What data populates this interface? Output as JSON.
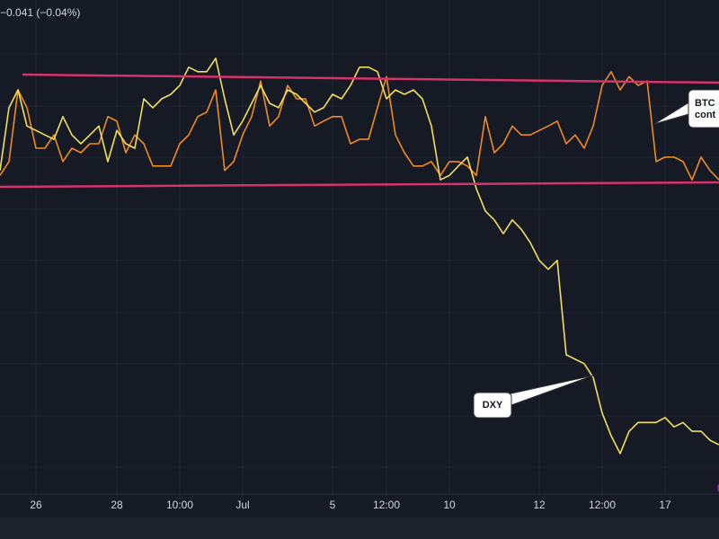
{
  "header": {
    "change": "−0.041 (−0.04%)"
  },
  "chart_data": {
    "type": "line",
    "categories": [
      null,
      null,
      null,
      null,
      "26",
      null,
      null,
      null,
      null,
      null,
      null,
      null,
      null,
      "28",
      null,
      null,
      null,
      null,
      null,
      null,
      "10:00",
      null,
      null,
      null,
      null,
      null,
      null,
      "Jul",
      null,
      null,
      null,
      null,
      null,
      null,
      null,
      null,
      null,
      "5",
      null,
      null,
      null,
      null,
      null,
      "12:00",
      null,
      null,
      null,
      null,
      null,
      null,
      "10",
      null,
      null,
      null,
      null,
      null,
      null,
      null,
      null,
      null,
      "12",
      null,
      null,
      null,
      null,
      null,
      null,
      "12:00",
      null,
      null,
      null,
      null,
      null,
      null,
      "17",
      null,
      null,
      null,
      null,
      null,
      null
    ],
    "series": [
      {
        "name": "BTC",
        "color": "#f08a24",
        "values": [
          64.5,
          67.3,
          81.8,
          78.2,
          70,
          70,
          72.7,
          67.3,
          70,
          69.1,
          70.9,
          70.9,
          76.4,
          75.5,
          69.1,
          72.7,
          70.9,
          66.4,
          66.4,
          66.4,
          70.9,
          72.7,
          76.4,
          77.3,
          81.8,
          65.5,
          67.3,
          72.7,
          76.4,
          83.6,
          74.5,
          76.4,
          82.7,
          80,
          80,
          74.5,
          75.5,
          76.4,
          76.4,
          70.9,
          71.8,
          71.8,
          78.2,
          84.5,
          72.7,
          69.1,
          66.4,
          66.4,
          67.3,
          64.5,
          67.3,
          67.3,
          66.4,
          64.5,
          76.4,
          69.1,
          70.9,
          74.5,
          72.7,
          72.7,
          73.6,
          74.5,
          75.5,
          70.9,
          72.7,
          70,
          74.5,
          82.7,
          85.5,
          81.8,
          84.5,
          82.7,
          83.6,
          67.3,
          68.2,
          68.2,
          67.3,
          63.6,
          68.2,
          65.5,
          63.6
        ]
      },
      {
        "name": "DXY",
        "color": "#f3df5a",
        "values": [
          65.5,
          78.2,
          81.8,
          74.5,
          73.6,
          72.7,
          71.8,
          76.4,
          72.7,
          70.9,
          72.7,
          74.5,
          67.3,
          73.6,
          70.9,
          70,
          80,
          78.2,
          80,
          80.9,
          82.7,
          86.4,
          85.5,
          85.5,
          88.2,
          80,
          72.7,
          75.5,
          79.1,
          82.7,
          79.1,
          78.2,
          81.8,
          80.9,
          79.1,
          77.3,
          78.2,
          80.9,
          80,
          82.7,
          86.4,
          86.4,
          85.5,
          80,
          81.8,
          80.9,
          81.8,
          80,
          74.5,
          63.6,
          64.5,
          66.4,
          68.2,
          61.8,
          57.3,
          55.5,
          52.7,
          55.5,
          53.6,
          50.9,
          47.3,
          45.5,
          47.3,
          28.2,
          27.3,
          26.4,
          23.6,
          16.4,
          11.8,
          8.2,
          12.7,
          14.5,
          14.5,
          14.5,
          15.5,
          13.6,
          14.5,
          12.7,
          12.7,
          10.9,
          10
        ]
      }
    ],
    "annotations": [
      "cont"
    ],
    "ylim": [
      0,
      100
    ]
  }
}
